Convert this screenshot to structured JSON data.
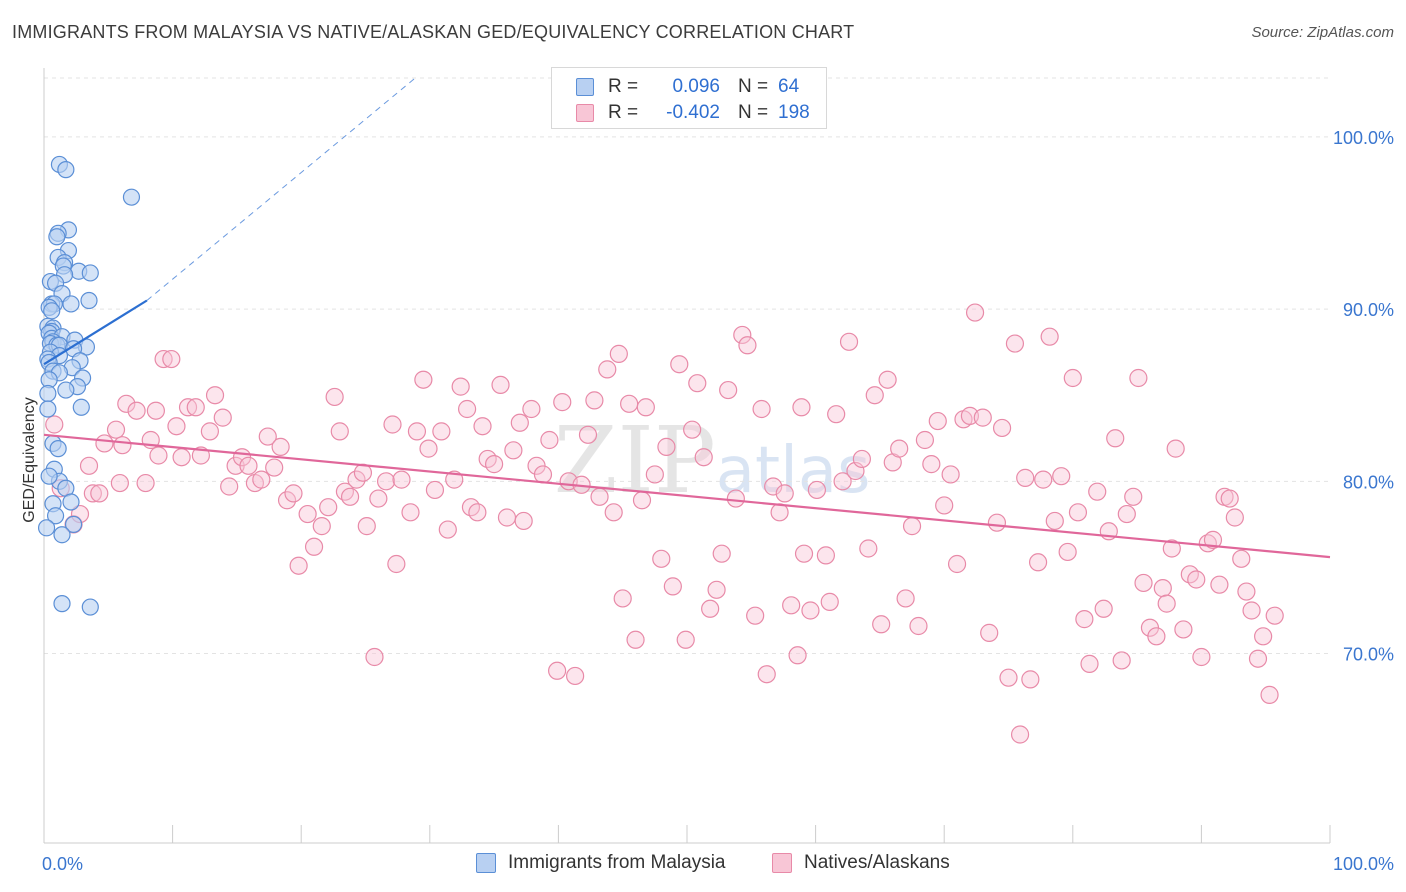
{
  "title": "IMMIGRANTS FROM MALAYSIA VS NATIVE/ALASKAN GED/EQUIVALENCY CORRELATION CHART",
  "source": "Source: ZipAtlas.com",
  "watermark": "ZIPatlas",
  "legend": {
    "r_label": "R =",
    "n_label": "N =",
    "rows": [
      {
        "r": "0.096",
        "n": "64"
      },
      {
        "r": "-0.402",
        "n": "198"
      }
    ]
  },
  "bottom_legend": [
    "Immigrants from Malaysia",
    "Natives/Alaskans"
  ],
  "colors": {
    "blue_fill": "#b8d0f2",
    "blue_stroke": "#5b8fd6",
    "blue_line": "#2c6fd1",
    "pink_fill": "#f8c6d6",
    "pink_stroke": "#e88aa8",
    "pink_line": "#e0679a",
    "axis_text": "#3a76cf"
  },
  "chart_data": {
    "type": "scatter",
    "title": "IMMIGRANTS FROM MALAYSIA VS NATIVE/ALASKAN GED/EQUIVALENCY CORRELATION CHART",
    "xlabel": "",
    "ylabel": "GED/Equivalency",
    "xlim": [
      0,
      100
    ],
    "ylim": [
      59,
      104
    ],
    "x_tick_labels": [
      "0.0%",
      "100.0%"
    ],
    "y_ticks": [
      70,
      80,
      90,
      100
    ],
    "y_tick_labels": [
      "70.0%",
      "80.0%",
      "90.0%",
      "100.0%"
    ],
    "grid": true,
    "legend_position": "top-center",
    "series": [
      {
        "name": "Immigrants from Malaysia",
        "color": "blue",
        "R": 0.096,
        "N": 64,
        "trend": {
          "x": [
            0,
            8
          ],
          "y": [
            86.8,
            90.5
          ]
        },
        "trend_dashed_extension": {
          "x": [
            8,
            29
          ],
          "y": [
            90.5,
            103.5
          ]
        },
        "points": [
          [
            1.2,
            98.4
          ],
          [
            1.7,
            98.1
          ],
          [
            6.8,
            96.5
          ],
          [
            1.9,
            94.6
          ],
          [
            1.1,
            94.4
          ],
          [
            1.0,
            94.2
          ],
          [
            1.9,
            93.4
          ],
          [
            1.1,
            93.0
          ],
          [
            1.6,
            92.7
          ],
          [
            1.5,
            92.5
          ],
          [
            2.7,
            92.2
          ],
          [
            3.6,
            92.1
          ],
          [
            1.6,
            92.0
          ],
          [
            0.5,
            91.6
          ],
          [
            0.9,
            91.5
          ],
          [
            1.4,
            90.9
          ],
          [
            3.5,
            90.5
          ],
          [
            2.1,
            90.3
          ],
          [
            0.6,
            90.3
          ],
          [
            0.8,
            90.3
          ],
          [
            0.4,
            90.1
          ],
          [
            0.6,
            89.9
          ],
          [
            0.3,
            89.0
          ],
          [
            0.7,
            88.9
          ],
          [
            0.6,
            88.7
          ],
          [
            0.4,
            88.6
          ],
          [
            0.6,
            88.3
          ],
          [
            1.4,
            88.4
          ],
          [
            2.4,
            88.2
          ],
          [
            0.7,
            88.1
          ],
          [
            0.5,
            88.0
          ],
          [
            1.0,
            87.9
          ],
          [
            1.2,
            87.9
          ],
          [
            3.3,
            87.8
          ],
          [
            2.3,
            87.7
          ],
          [
            0.5,
            87.5
          ],
          [
            1.2,
            87.3
          ],
          [
            0.3,
            87.1
          ],
          [
            2.8,
            87.0
          ],
          [
            0.4,
            86.9
          ],
          [
            2.2,
            86.6
          ],
          [
            0.7,
            86.4
          ],
          [
            1.2,
            86.3
          ],
          [
            3.0,
            86.0
          ],
          [
            0.4,
            85.9
          ],
          [
            2.6,
            85.5
          ],
          [
            1.7,
            85.3
          ],
          [
            0.3,
            85.1
          ],
          [
            2.9,
            84.3
          ],
          [
            0.3,
            84.2
          ],
          [
            0.7,
            82.2
          ],
          [
            1.1,
            81.9
          ],
          [
            0.8,
            80.7
          ],
          [
            1.2,
            80.0
          ],
          [
            1.7,
            79.6
          ],
          [
            2.1,
            78.8
          ],
          [
            0.7,
            78.7
          ],
          [
            0.9,
            78.0
          ],
          [
            2.3,
            77.5
          ],
          [
            1.4,
            76.9
          ],
          [
            1.4,
            72.9
          ],
          [
            3.6,
            72.7
          ],
          [
            0.2,
            77.3
          ],
          [
            0.4,
            80.3
          ]
        ]
      },
      {
        "name": "Natives/Alaskans",
        "color": "pink",
        "R": -0.402,
        "N": 198,
        "trend": {
          "x": [
            0,
            100
          ],
          "y": [
            82.7,
            75.6
          ]
        },
        "points": [
          [
            0.8,
            83.3
          ],
          [
            1.3,
            79.6
          ],
          [
            2.3,
            77.5
          ],
          [
            2.8,
            78.1
          ],
          [
            3.5,
            80.9
          ],
          [
            3.8,
            79.3
          ],
          [
            4.3,
            79.3
          ],
          [
            4.7,
            82.2
          ],
          [
            5.6,
            83.0
          ],
          [
            6.1,
            82.1
          ],
          [
            5.9,
            79.9
          ],
          [
            6.4,
            84.5
          ],
          [
            7.2,
            84.1
          ],
          [
            7.9,
            79.9
          ],
          [
            8.3,
            82.4
          ],
          [
            8.7,
            84.1
          ],
          [
            8.9,
            81.5
          ],
          [
            9.3,
            87.1
          ],
          [
            9.9,
            87.1
          ],
          [
            10.3,
            83.2
          ],
          [
            10.7,
            81.4
          ],
          [
            11.2,
            84.3
          ],
          [
            11.8,
            84.3
          ],
          [
            12.2,
            81.5
          ],
          [
            12.9,
            82.9
          ],
          [
            13.3,
            85.0
          ],
          [
            13.9,
            83.7
          ],
          [
            14.4,
            79.7
          ],
          [
            14.9,
            80.9
          ],
          [
            15.4,
            81.4
          ],
          [
            15.9,
            80.9
          ],
          [
            16.4,
            79.9
          ],
          [
            16.9,
            80.1
          ],
          [
            17.4,
            82.6
          ],
          [
            17.9,
            80.8
          ],
          [
            18.4,
            82.0
          ],
          [
            18.9,
            78.9
          ],
          [
            19.4,
            79.3
          ],
          [
            19.8,
            75.1
          ],
          [
            20.5,
            78.1
          ],
          [
            21.0,
            76.2
          ],
          [
            21.6,
            77.4
          ],
          [
            22.1,
            78.5
          ],
          [
            22.6,
            84.9
          ],
          [
            23.0,
            82.9
          ],
          [
            23.4,
            79.4
          ],
          [
            23.8,
            79.1
          ],
          [
            24.3,
            80.1
          ],
          [
            24.8,
            80.5
          ],
          [
            25.1,
            77.4
          ],
          [
            25.7,
            69.8
          ],
          [
            26.0,
            79.0
          ],
          [
            26.6,
            80.0
          ],
          [
            27.1,
            83.3
          ],
          [
            27.4,
            75.2
          ],
          [
            27.8,
            80.1
          ],
          [
            28.5,
            78.2
          ],
          [
            29.0,
            82.9
          ],
          [
            29.5,
            85.9
          ],
          [
            29.9,
            81.9
          ],
          [
            30.4,
            79.5
          ],
          [
            30.9,
            82.9
          ],
          [
            31.4,
            77.2
          ],
          [
            31.9,
            80.1
          ],
          [
            32.4,
            85.5
          ],
          [
            32.9,
            84.2
          ],
          [
            33.2,
            78.5
          ],
          [
            33.7,
            78.2
          ],
          [
            34.1,
            83.2
          ],
          [
            34.5,
            81.3
          ],
          [
            35.0,
            81.0
          ],
          [
            35.5,
            85.6
          ],
          [
            36.0,
            77.9
          ],
          [
            36.5,
            81.8
          ],
          [
            37.0,
            83.4
          ],
          [
            37.3,
            77.7
          ],
          [
            37.9,
            84.2
          ],
          [
            38.3,
            80.9
          ],
          [
            38.8,
            80.4
          ],
          [
            39.3,
            82.4
          ],
          [
            39.9,
            69.0
          ],
          [
            40.3,
            84.6
          ],
          [
            40.8,
            80.0
          ],
          [
            41.3,
            68.7
          ],
          [
            41.8,
            79.8
          ],
          [
            42.3,
            82.7
          ],
          [
            42.8,
            84.7
          ],
          [
            43.2,
            79.1
          ],
          [
            43.8,
            86.5
          ],
          [
            44.3,
            78.2
          ],
          [
            44.7,
            87.4
          ],
          [
            45.0,
            73.2
          ],
          [
            45.5,
            84.5
          ],
          [
            46.0,
            70.8
          ],
          [
            46.5,
            78.9
          ],
          [
            46.8,
            84.3
          ],
          [
            47.5,
            80.4
          ],
          [
            48.0,
            75.5
          ],
          [
            48.4,
            82.0
          ],
          [
            48.9,
            73.9
          ],
          [
            49.4,
            86.8
          ],
          [
            49.9,
            70.8
          ],
          [
            50.4,
            83.0
          ],
          [
            50.8,
            85.7
          ],
          [
            51.3,
            81.4
          ],
          [
            51.8,
            72.6
          ],
          [
            52.3,
            73.7
          ],
          [
            52.7,
            75.8
          ],
          [
            53.2,
            85.3
          ],
          [
            53.8,
            79.0
          ],
          [
            54.3,
            88.5
          ],
          [
            54.7,
            87.9
          ],
          [
            55.3,
            72.2
          ],
          [
            55.8,
            84.2
          ],
          [
            56.2,
            68.8
          ],
          [
            56.7,
            79.7
          ],
          [
            57.2,
            78.2
          ],
          [
            57.6,
            79.3
          ],
          [
            58.1,
            72.8
          ],
          [
            58.6,
            69.9
          ],
          [
            58.9,
            84.3
          ],
          [
            59.1,
            75.8
          ],
          [
            59.6,
            72.5
          ],
          [
            60.1,
            79.5
          ],
          [
            60.8,
            75.7
          ],
          [
            61.1,
            73.0
          ],
          [
            61.6,
            83.9
          ],
          [
            62.1,
            80.0
          ],
          [
            62.6,
            88.1
          ],
          [
            63.1,
            80.6
          ],
          [
            63.6,
            81.3
          ],
          [
            64.1,
            76.1
          ],
          [
            64.6,
            85.0
          ],
          [
            65.1,
            71.7
          ],
          [
            65.6,
            85.9
          ],
          [
            66.0,
            81.1
          ],
          [
            66.5,
            81.9
          ],
          [
            67.0,
            73.2
          ],
          [
            67.5,
            77.4
          ],
          [
            68.0,
            71.6
          ],
          [
            68.5,
            82.4
          ],
          [
            69.0,
            81.0
          ],
          [
            69.5,
            83.5
          ],
          [
            70.0,
            78.6
          ],
          [
            70.5,
            80.4
          ],
          [
            71.0,
            75.2
          ],
          [
            71.5,
            83.6
          ],
          [
            72.0,
            83.8
          ],
          [
            72.4,
            89.8
          ],
          [
            73.0,
            83.7
          ],
          [
            73.5,
            71.2
          ],
          [
            74.1,
            77.6
          ],
          [
            74.5,
            83.1
          ],
          [
            75.0,
            68.6
          ],
          [
            75.5,
            88.0
          ],
          [
            75.9,
            65.3
          ],
          [
            76.3,
            80.2
          ],
          [
            76.7,
            68.5
          ],
          [
            77.3,
            75.3
          ],
          [
            77.7,
            80.1
          ],
          [
            78.2,
            88.4
          ],
          [
            78.6,
            77.7
          ],
          [
            79.1,
            80.3
          ],
          [
            79.6,
            75.9
          ],
          [
            80.0,
            86.0
          ],
          [
            80.4,
            78.2
          ],
          [
            80.9,
            72.0
          ],
          [
            81.3,
            69.4
          ],
          [
            81.9,
            79.4
          ],
          [
            82.4,
            72.6
          ],
          [
            82.8,
            77.1
          ],
          [
            83.3,
            82.5
          ],
          [
            83.8,
            69.6
          ],
          [
            84.2,
            78.1
          ],
          [
            84.7,
            79.1
          ],
          [
            85.1,
            86.0
          ],
          [
            85.5,
            74.1
          ],
          [
            86.0,
            71.5
          ],
          [
            86.5,
            71.0
          ],
          [
            87.0,
            73.8
          ],
          [
            87.3,
            72.9
          ],
          [
            87.7,
            76.1
          ],
          [
            88.0,
            81.9
          ],
          [
            88.6,
            71.4
          ],
          [
            89.1,
            74.6
          ],
          [
            89.6,
            74.3
          ],
          [
            90.0,
            69.8
          ],
          [
            90.5,
            76.4
          ],
          [
            90.9,
            76.6
          ],
          [
            91.4,
            74.0
          ],
          [
            91.8,
            79.1
          ],
          [
            92.2,
            79.0
          ],
          [
            92.6,
            77.9
          ],
          [
            93.1,
            75.5
          ],
          [
            93.5,
            73.6
          ],
          [
            93.9,
            72.5
          ],
          [
            94.4,
            69.7
          ],
          [
            94.8,
            71.0
          ],
          [
            95.3,
            67.6
          ],
          [
            95.7,
            72.2
          ]
        ]
      }
    ]
  }
}
